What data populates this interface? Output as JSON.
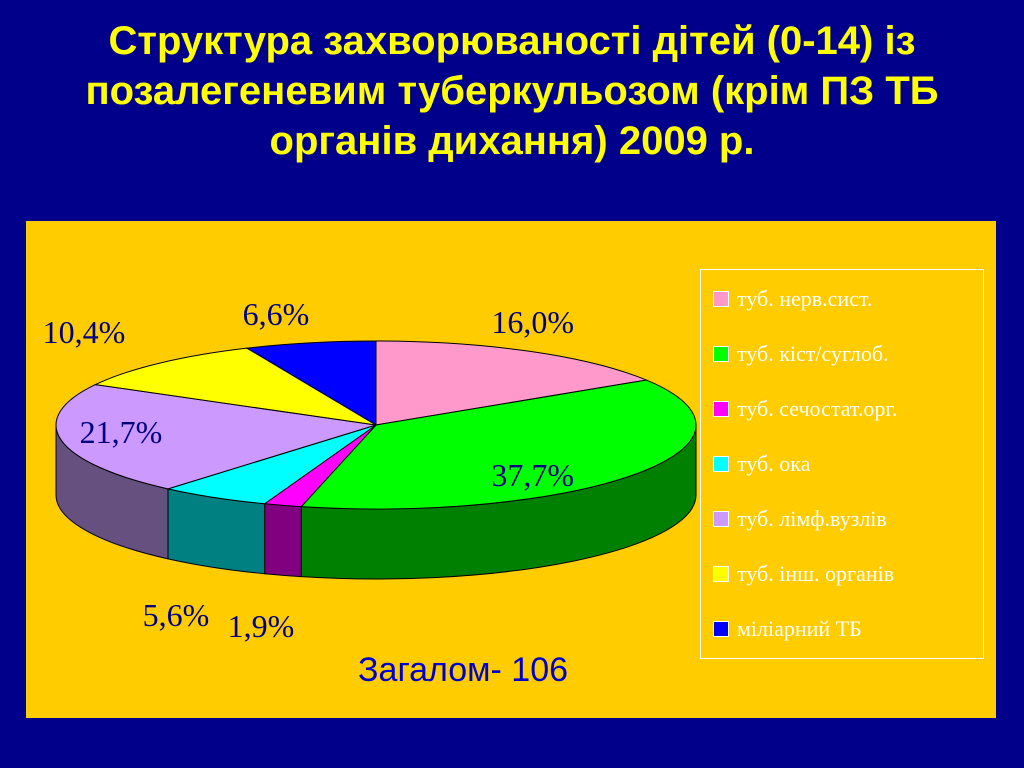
{
  "title_lines": [
    "Структура захворюваності дітей (0-14) із",
    "позалегеневим туберкульозом (крім ПЗ ТБ",
    "органів дихання) 2009 р."
  ],
  "total_label": "Загалом- 106",
  "colors": {
    "background": "#00008b",
    "title": "#ffff00",
    "panel": "#ffcc00",
    "label_text": "#000080",
    "legend_text": "#ffffff",
    "total_text": "#0000cc"
  },
  "chart_data": {
    "type": "pie",
    "style": "3d-exploded",
    "slices": [
      {
        "name": "туб. нерв.сист.",
        "value": 16.0,
        "label": "16,0%",
        "color": "#ff99cc",
        "side_color": "#cc6699"
      },
      {
        "name": "туб. кіст/суглоб.",
        "value": 37.7,
        "label": "37,7%",
        "color": "#00ff00",
        "side_color": "#008000"
      },
      {
        "name": "туб. сечостат.орг.",
        "value": 1.9,
        "label": "1,9%",
        "color": "#ff00ff",
        "side_color": "#800080"
      },
      {
        "name": "туб. ока",
        "value": 5.6,
        "label": "5,6%",
        "color": "#00ffff",
        "side_color": "#008080"
      },
      {
        "name": "туб. лімф.вузлів",
        "value": 21.7,
        "label": "21,7%",
        "color": "#cc99ff",
        "side_color": "#665080"
      },
      {
        "name": "туб. інш. органів",
        "value": 10.4,
        "label": "10,4%",
        "color": "#ffff00",
        "side_color": "#808000"
      },
      {
        "name": "міліарний ТБ",
        "value": 6.6,
        "label": "6,6%",
        "color": "#0000ff",
        "side_color": "#000080"
      }
    ],
    "legend_position": "right"
  }
}
